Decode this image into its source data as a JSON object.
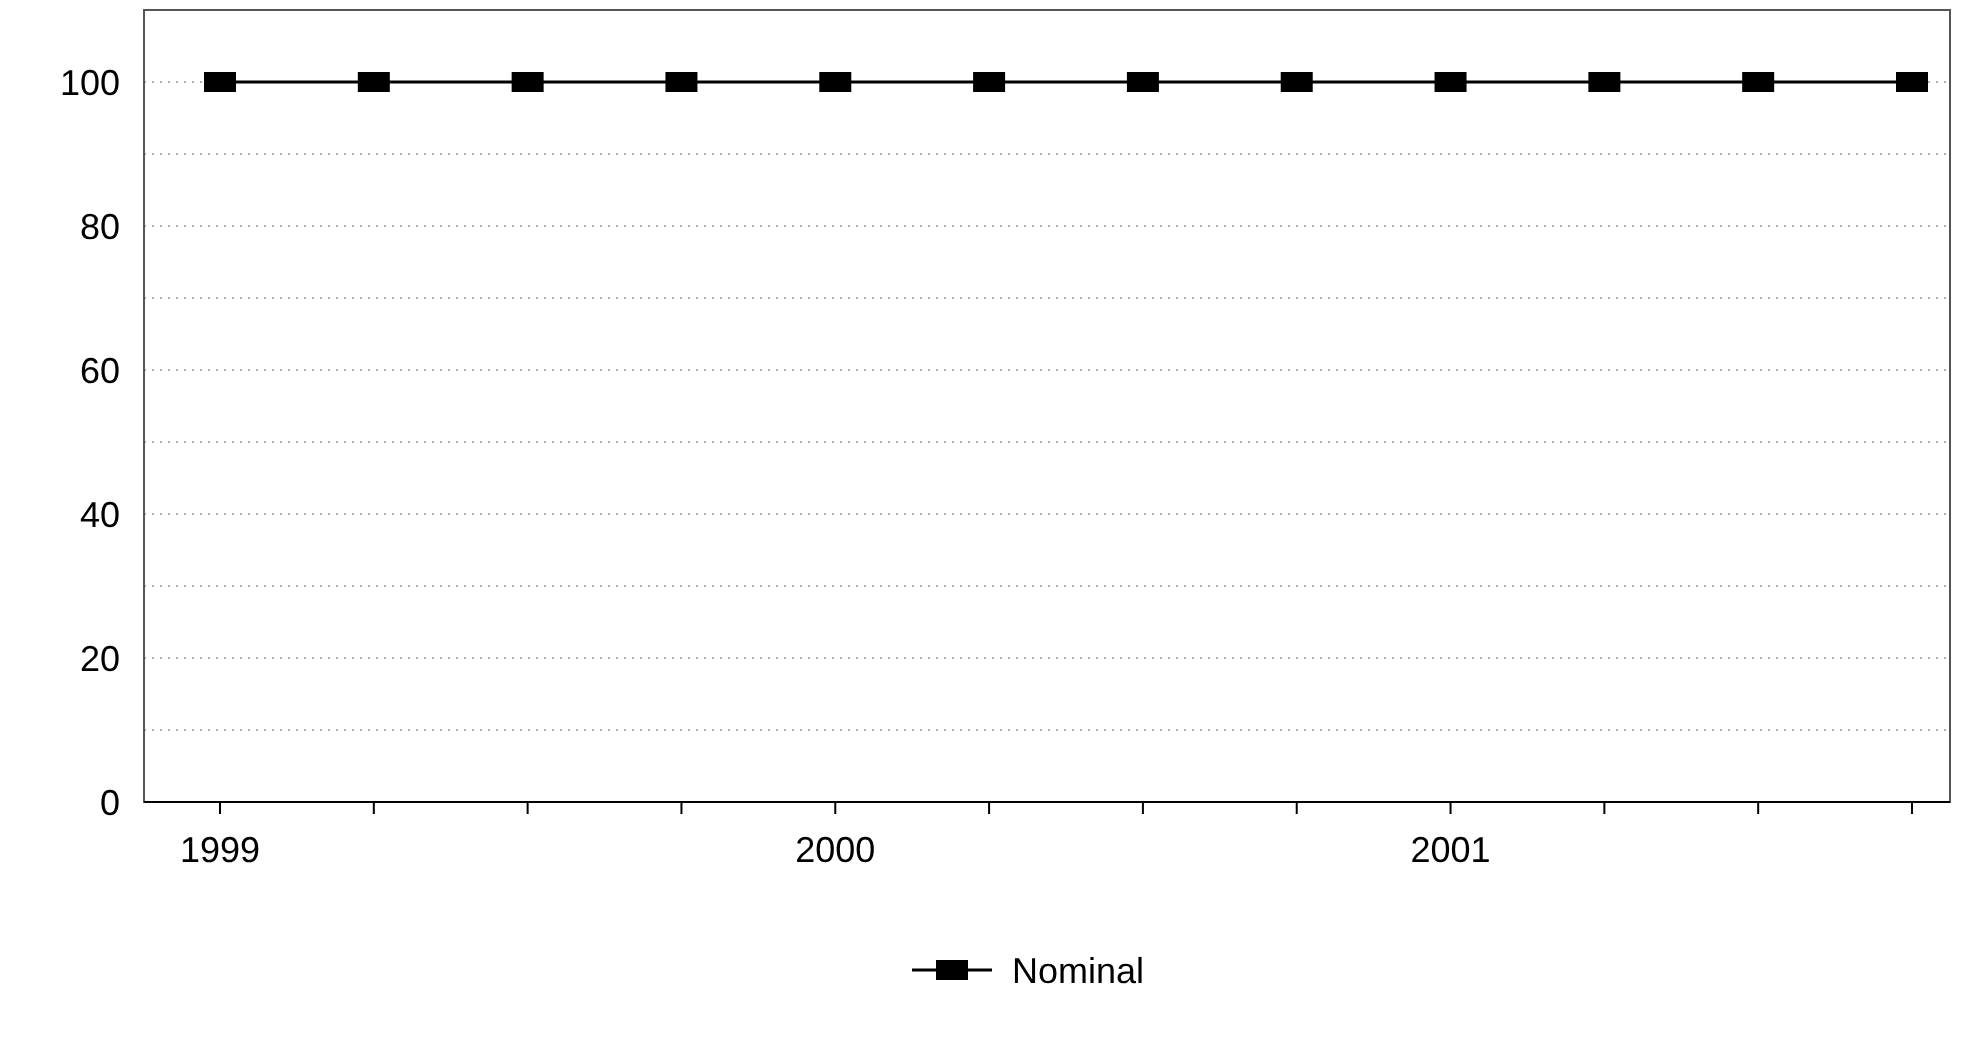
{
  "chart_data": {
    "type": "line",
    "categories": [
      "1999",
      null,
      null,
      null,
      "2000",
      null,
      null,
      null,
      "2001",
      null,
      null,
      null
    ],
    "series": [
      {
        "name": "Nominal",
        "color": "#000000",
        "values": [
          100,
          100,
          100,
          100,
          100,
          100,
          100,
          100,
          100,
          100,
          100,
          100
        ]
      }
    ],
    "ylim": [
      0,
      110
    ],
    "yticks": [
      0,
      {
        "value": 10,
        "label": null
      },
      20,
      {
        "value": 30,
        "label": null
      },
      40,
      {
        "value": 50,
        "label": null
      },
      60,
      {
        "value": 70,
        "label": null
      },
      80,
      {
        "value": 90,
        "label": null
      },
      100,
      {
        "value": 110,
        "label": null
      }
    ],
    "grid": "y",
    "legend": "bottom",
    "marker": "square",
    "line_style": "solid"
  }
}
